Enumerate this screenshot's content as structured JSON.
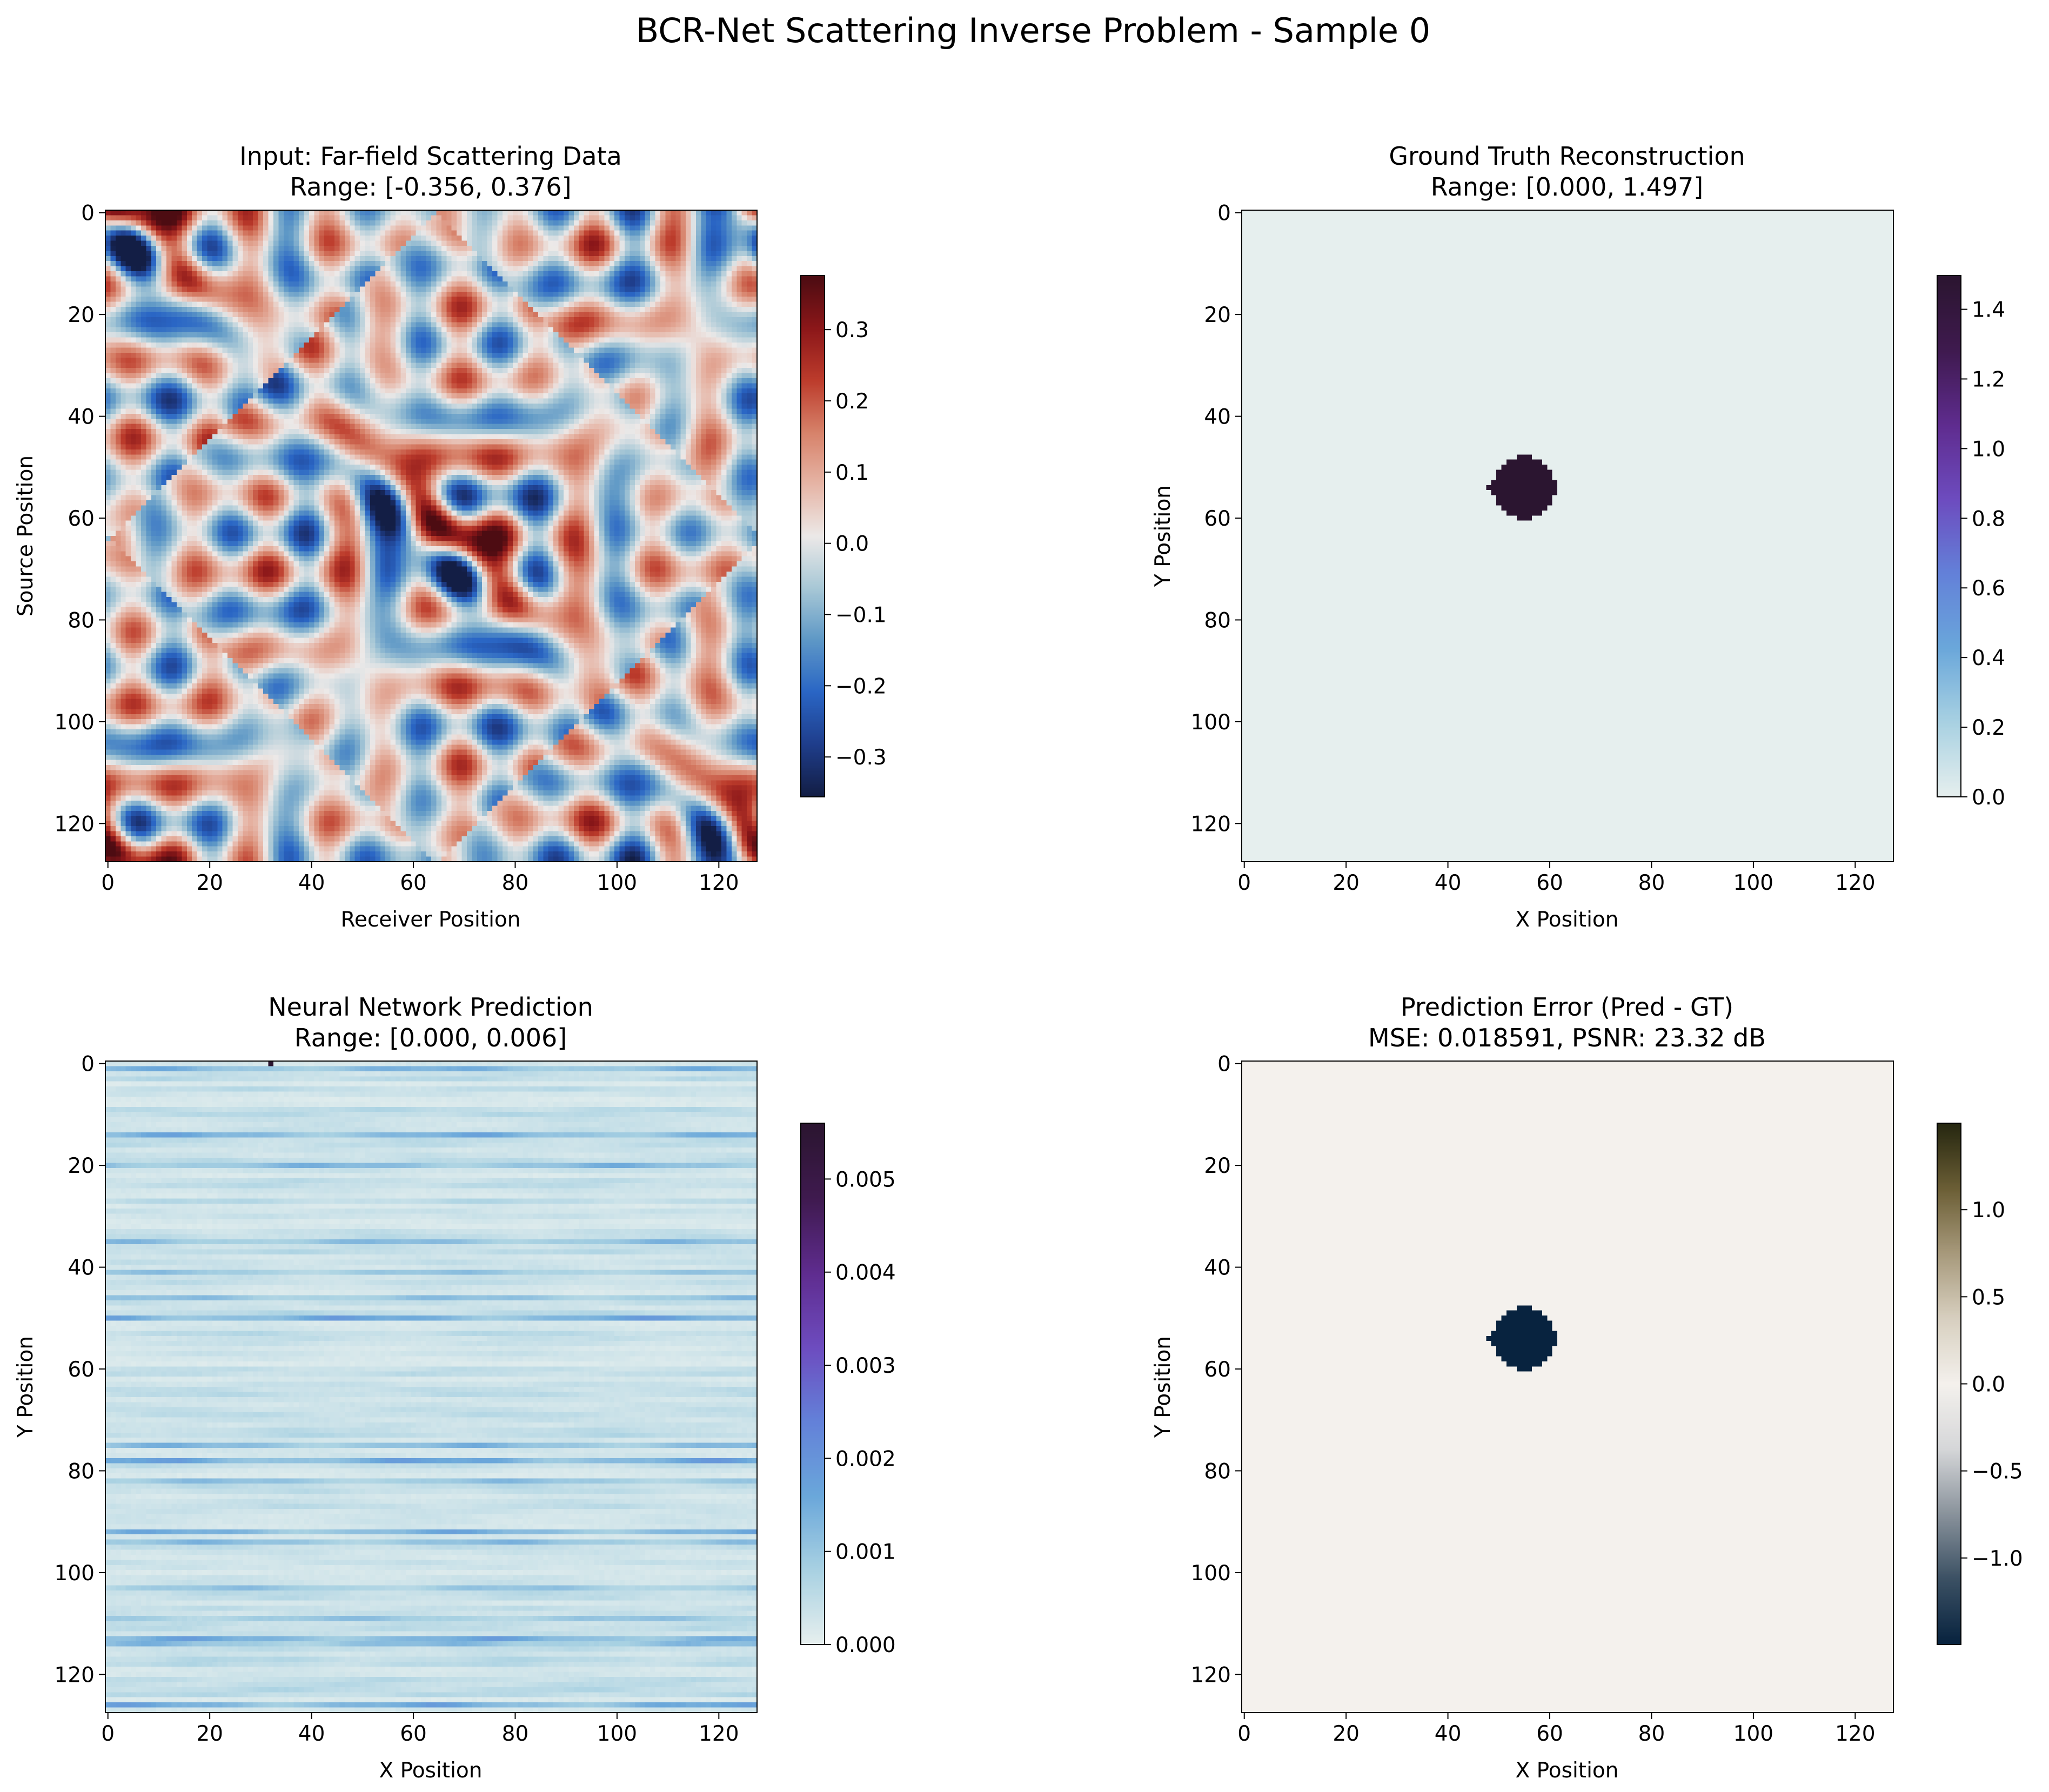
{
  "figure": {
    "suptitle": "BCR-Net Scattering Inverse Problem - Sample 0"
  },
  "chart_data": [
    {
      "type": "heatmap",
      "id": "input",
      "title": "Input: Far-field Scattering Data",
      "subtitle": "Range: [-0.356, 0.376]",
      "xlabel": "Receiver Position",
      "ylabel": "Source Position",
      "grid_size": [
        128,
        128
      ],
      "xticks": [
        0,
        20,
        40,
        60,
        80,
        100,
        120
      ],
      "yticks": [
        0,
        20,
        40,
        60,
        80,
        100,
        120
      ],
      "value_range": [
        -0.356,
        0.376
      ],
      "colorbar": {
        "min": -0.356,
        "max": 0.376,
        "ticks": [
          -0.3,
          -0.2,
          -0.1,
          0.0,
          0.1,
          0.2,
          0.3
        ],
        "tick_labels": [
          "−0.3",
          "−0.2",
          "−0.1",
          "0.0",
          "0.1",
          "0.2",
          "0.3"
        ]
      },
      "colormap": {
        "name": "diverging-blue-white-red",
        "stops": [
          "#131e45",
          "#1f3e8c",
          "#2a66c5",
          "#5e98c6",
          "#a8c8d6",
          "#ece9e8",
          "#e6b5a6",
          "#d7826a",
          "#bd3c2c",
          "#8c1719",
          "#4d0c12"
        ]
      },
      "grid": false,
      "legend": "none"
    },
    {
      "type": "heatmap",
      "id": "ground-truth",
      "title": "Ground Truth Reconstruction",
      "subtitle": "Range: [0.000, 1.497]",
      "xlabel": "X Position",
      "ylabel": "Y Position",
      "grid_size": [
        128,
        128
      ],
      "xticks": [
        0,
        20,
        40,
        60,
        80,
        100,
        120
      ],
      "yticks": [
        0,
        20,
        40,
        60,
        80,
        100,
        120
      ],
      "value_range": [
        0.0,
        1.497
      ],
      "disk": {
        "center_x": 55,
        "center_y": 54,
        "radius": 6,
        "value": 1.497
      },
      "background_value": 0.0,
      "colorbar": {
        "min": 0.0,
        "max": 1.497,
        "ticks": [
          0.0,
          0.2,
          0.4,
          0.6,
          0.8,
          1.0,
          1.2,
          1.4
        ],
        "tick_labels": [
          "0.0",
          "0.2",
          "0.4",
          "0.6",
          "0.8",
          "1.0",
          "1.2",
          "1.4"
        ]
      },
      "colormap": {
        "name": "sequential-light-blue-purple",
        "stops": [
          "#e6efee",
          "#a8d1e2",
          "#6aa7da",
          "#6381d9",
          "#6d4cbf",
          "#5f2c8f",
          "#3f1a4f",
          "#2b1530"
        ]
      },
      "grid": false,
      "legend": "none"
    },
    {
      "type": "heatmap",
      "id": "prediction",
      "title": "Neural Network Prediction",
      "subtitle": "Range: [0.000, 0.006]",
      "xlabel": "X Position",
      "ylabel": "Y Position",
      "grid_size": [
        128,
        128
      ],
      "xticks": [
        0,
        20,
        40,
        60,
        80,
        100,
        120
      ],
      "yticks": [
        0,
        20,
        40,
        60,
        80,
        100,
        120
      ],
      "value_range": [
        0.0,
        0.0056
      ],
      "strong_rows": [
        {
          "row": 1,
          "value": 0.0016
        },
        {
          "row": 14,
          "value": 0.0017
        },
        {
          "row": 20,
          "value": 0.0015
        },
        {
          "row": 35,
          "value": 0.0014
        },
        {
          "row": 41,
          "value": 0.0012
        },
        {
          "row": 46,
          "value": 0.0013
        },
        {
          "row": 50,
          "value": 0.0019
        },
        {
          "row": 75,
          "value": 0.0015
        },
        {
          "row": 78,
          "value": 0.0019
        },
        {
          "row": 82,
          "value": 0.0013
        },
        {
          "row": 92,
          "value": 0.0017
        },
        {
          "row": 94,
          "value": 0.0014
        },
        {
          "row": 103,
          "value": 0.0012
        },
        {
          "row": 109,
          "value": 0.0012
        },
        {
          "row": 113,
          "value": 0.0018
        },
        {
          "row": 114,
          "value": 0.0014
        },
        {
          "row": 126,
          "value": 0.0018
        }
      ],
      "colorbar": {
        "min": 0.0,
        "max": 0.0056,
        "ticks": [
          0.0,
          0.001,
          0.002,
          0.003,
          0.004,
          0.005
        ],
        "tick_labels": [
          "0.000",
          "0.001",
          "0.002",
          "0.003",
          "0.004",
          "0.005"
        ]
      },
      "colormap": {
        "name": "sequential-light-blue-purple",
        "stops": [
          "#e6efee",
          "#a8d1e2",
          "#6aa7da",
          "#6381d9",
          "#6d4cbf",
          "#5f2c8f",
          "#3f1a4f",
          "#2b1530"
        ]
      },
      "grid": false,
      "legend": "none"
    },
    {
      "type": "heatmap",
      "id": "error",
      "title": "Prediction Error (Pred - GT)",
      "subtitle": "MSE: 0.018591, PSNR: 23.32 dB",
      "xlabel": "X Position",
      "ylabel": "Y Position",
      "grid_size": [
        128,
        128
      ],
      "xticks": [
        0,
        20,
        40,
        60,
        80,
        100,
        120
      ],
      "yticks": [
        0,
        20,
        40,
        60,
        80,
        100,
        120
      ],
      "value_range": [
        -1.497,
        1.497
      ],
      "disk": {
        "center_x": 55,
        "center_y": 54,
        "radius": 6,
        "value": -1.497
      },
      "background_value": 0.0,
      "colorbar": {
        "min": -1.497,
        "max": 1.497,
        "ticks": [
          -1.0,
          -0.5,
          0.0,
          0.5,
          1.0
        ],
        "tick_labels": [
          "−1.0",
          "−0.5",
          "0.0",
          "0.5",
          "1.0"
        ]
      },
      "colormap": {
        "name": "diverging-navy-white-olive",
        "stops": [
          "#08233f",
          "#3c5164",
          "#8a939c",
          "#d6d7d9",
          "#f4f1ed",
          "#d8d0c0",
          "#a89a7c",
          "#6c5f36",
          "#262710"
        ]
      },
      "grid": false,
      "legend": "none"
    }
  ]
}
